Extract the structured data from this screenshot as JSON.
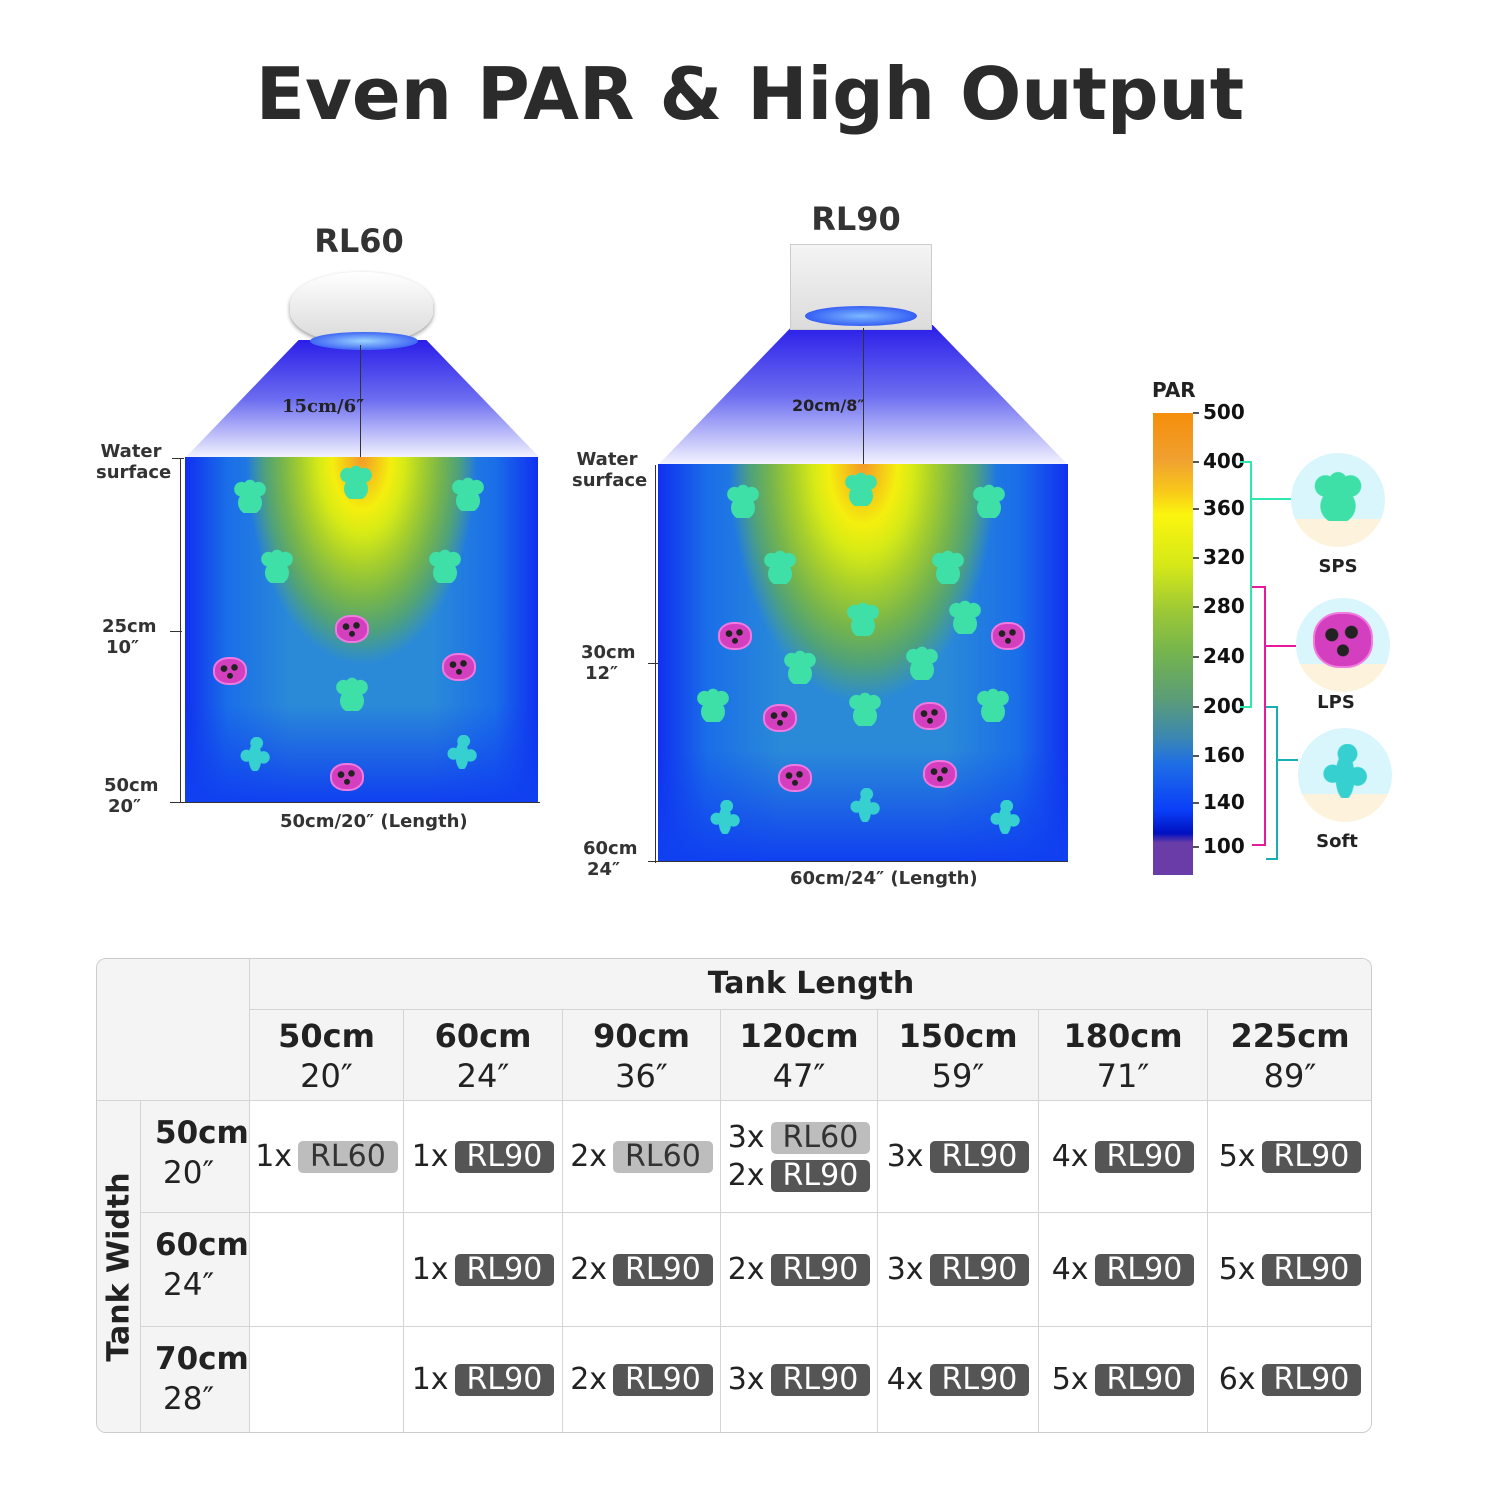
{
  "title": "Even PAR & High Output",
  "diagrams": [
    {
      "model": "RL60",
      "height_label": "15cm/6″",
      "water_surface": "Water surface",
      "depth_marks": [
        [
          "25cm",
          "10″"
        ],
        [
          "50cm",
          "20″"
        ]
      ],
      "length_label": "50cm/20″  (Length)"
    },
    {
      "model": "RL90",
      "height_label": "20cm/8″",
      "water_surface": "Water surface",
      "depth_marks": [
        [
          "30cm",
          "12″"
        ],
        [
          "60cm",
          "24″"
        ]
      ],
      "length_label": "60cm/24″  (Length)"
    }
  ],
  "legend": {
    "title": "PAR",
    "ticks": [
      "500",
      "400",
      "360",
      "320",
      "280",
      "240",
      "200",
      "160",
      "140",
      "100"
    ],
    "corals": [
      {
        "name": "SPS",
        "range": "200-400",
        "color": "#2ee8b0"
      },
      {
        "name": "LPS",
        "range": "100-300",
        "color": "#e8189a"
      },
      {
        "name": "Soft",
        "range": "90-200",
        "color": "#16b0b0"
      }
    ]
  },
  "table": {
    "length_header": "Tank Length",
    "width_header": "Tank Width",
    "lengths": [
      [
        "50cm",
        "20″"
      ],
      [
        "60cm",
        "24″"
      ],
      [
        "90cm",
        "36″"
      ],
      [
        "120cm",
        "47″"
      ],
      [
        "150cm",
        "59″"
      ],
      [
        "180cm",
        "71″"
      ],
      [
        "225cm",
        "89″"
      ]
    ],
    "rows": [
      {
        "width": [
          "50cm",
          "20″"
        ],
        "cells": [
          [
            [
              "1x",
              "RL60"
            ]
          ],
          [
            [
              "1x",
              "RL90"
            ]
          ],
          [
            [
              "2x",
              "RL60"
            ]
          ],
          [
            [
              "3x",
              "RL60"
            ],
            [
              "2x",
              "RL90"
            ]
          ],
          [
            [
              "3x",
              "RL90"
            ]
          ],
          [
            [
              "4x",
              "RL90"
            ]
          ],
          [
            [
              "5x",
              "RL90"
            ]
          ]
        ]
      },
      {
        "width": [
          "60cm",
          "24″"
        ],
        "cells": [
          [],
          [
            [
              "1x",
              "RL90"
            ]
          ],
          [
            [
              "2x",
              "RL90"
            ]
          ],
          [
            [
              "2x",
              "RL90"
            ]
          ],
          [
            [
              "3x",
              "RL90"
            ]
          ],
          [
            [
              "4x",
              "RL90"
            ]
          ],
          [
            [
              "5x",
              "RL90"
            ]
          ]
        ]
      },
      {
        "width": [
          "70cm",
          "28″"
        ],
        "cells": [
          [],
          [
            [
              "1x",
              "RL90"
            ]
          ],
          [
            [
              "2x",
              "RL90"
            ]
          ],
          [
            [
              "3x",
              "RL90"
            ]
          ],
          [
            [
              "4x",
              "RL90"
            ]
          ],
          [
            [
              "5x",
              "RL90"
            ]
          ],
          [
            [
              "6x",
              "RL90"
            ]
          ]
        ]
      }
    ]
  }
}
